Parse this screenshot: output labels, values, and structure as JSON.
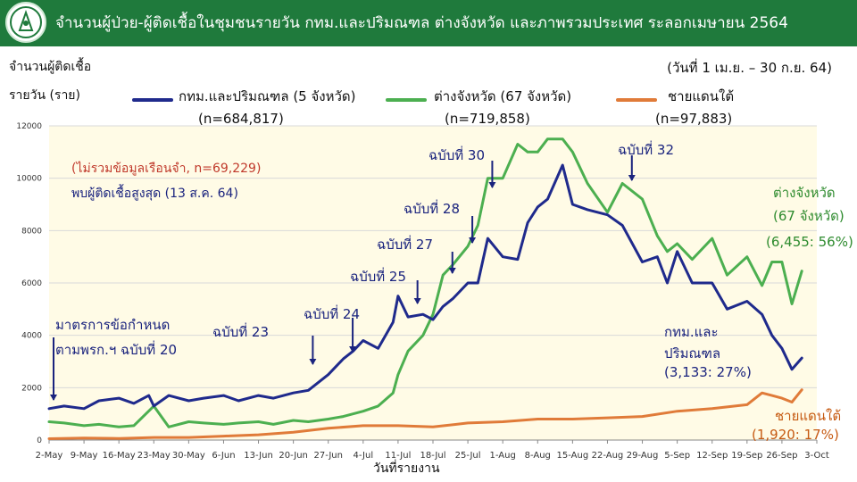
{
  "header": {
    "title": "จำนวนผู้ป่วย-ผู้ติดเชื้อในชุมชนรายวัน กทม.และปริมณฑล ต่างจังหวัด และภาพรวมประเทศ ระลอกเมษายน 2564",
    "logo_icon": "ministry-logo-icon",
    "bg_color": "#1f7a3c"
  },
  "y_label_line1": "จำนวนผู้ติดเชื้อ",
  "y_label_line2": "รายวัน (ราย)",
  "date_range": "(วันที่ 1 เม.ย. – 30 ก.ย. 64)",
  "x_axis_title": "วันที่รายงาน",
  "legend": [
    {
      "label": "กทม.และปริมณฑล (5 จังหวัด)",
      "n": "(n=684,817)",
      "color": "#1f2a8c"
    },
    {
      "label": "ต่างจังหวัด (67 จังหวัด)",
      "n": "(n=719,858)",
      "color": "#4caf50"
    },
    {
      "label": "ชายแดนใต้",
      "n": "(n=97,883)",
      "color": "#e07b39"
    }
  ],
  "notes": {
    "excluded": "(ไม่รวมข้อมูลเรือนจำ, n=69,229)",
    "peak": "พบผู้ติดเชื้อสูงสุด (13 ส.ค. 64)"
  },
  "annotations": {
    "measure_line1": "มาตรการข้อกำหนด",
    "measure_line2": "ตามพรก.ฯ ฉบับที่ 20",
    "v23": "ฉบับที่ 23",
    "v24": "ฉบับที่ 24",
    "v25": "ฉบับที่ 25",
    "v27": "ฉบับที่ 27",
    "v28": "ฉบับที่ 28",
    "v30": "ฉบับที่ 30",
    "v32": "ฉบับที่ 32",
    "prov_line1": "ต่างจังหวัด",
    "prov_line2": "(67 จังหวัด)",
    "prov_value": "(6,455: 56%)",
    "bkk_line1": "กทม.และ",
    "bkk_line2": "ปริมณฑล",
    "bkk_value": "(3,133: 27%)",
    "south_line1": "ชายแดนใต้",
    "south_value": "(1,920: 17%)"
  },
  "chart_data": {
    "type": "line",
    "x_unit": "day",
    "x_start": "2021-05-02",
    "x_end": "2021-10-03",
    "x_tick_labels": [
      "2-May",
      "9-May",
      "16-May",
      "23-May",
      "30-May",
      "6-Jun",
      "13-Jun",
      "20-Jun",
      "27-Jun",
      "4-Jul",
      "11-Jul",
      "18-Jul",
      "25-Jul",
      "1-Aug",
      "8-Aug",
      "15-Aug",
      "22-Aug",
      "29-Aug",
      "5-Sep",
      "12-Sep",
      "19-Sep",
      "26-Sep",
      "3-Oct"
    ],
    "y_ticks": [
      0,
      2000,
      4000,
      6000,
      8000,
      10000,
      12000
    ],
    "ylim": [
      0,
      12000
    ],
    "grid": "horizontal",
    "series": [
      {
        "name": "กทม.และปริมณฑล (5 จังหวัด)",
        "color": "#1f2a8c",
        "x": [
          "2-May",
          "5-May",
          "9-May",
          "12-May",
          "16-May",
          "19-May",
          "22-May",
          "23-May",
          "26-May",
          "30-May",
          "2-Jun",
          "6-Jun",
          "9-Jun",
          "13-Jun",
          "16-Jun",
          "20-Jun",
          "23-Jun",
          "27-Jun",
          "30-Jun",
          "2-Jul",
          "4-Jul",
          "7-Jul",
          "10-Jul",
          "11-Jul",
          "13-Jul",
          "16-Jul",
          "18-Jul",
          "20-Jul",
          "22-Jul",
          "25-Jul",
          "27-Jul",
          "29-Jul",
          "1-Aug",
          "4-Aug",
          "6-Aug",
          "8-Aug",
          "10-Aug",
          "13-Aug",
          "15-Aug",
          "18-Aug",
          "22-Aug",
          "25-Aug",
          "29-Aug",
          "1-Sep",
          "3-Sep",
          "5-Sep",
          "8-Sep",
          "12-Sep",
          "15-Sep",
          "19-Sep",
          "22-Sep",
          "24-Sep",
          "26-Sep",
          "28-Sep",
          "30-Sep"
        ],
        "values": [
          1200,
          1300,
          1200,
          1500,
          1600,
          1400,
          1700,
          1300,
          1700,
          1500,
          1600,
          1700,
          1500,
          1700,
          1600,
          1800,
          1900,
          2500,
          3100,
          3400,
          3800,
          3500,
          4500,
          5500,
          4700,
          4800,
          4600,
          5100,
          5400,
          6000,
          6000,
          7700,
          7000,
          6900,
          8300,
          8900,
          9200,
          10500,
          9000,
          8800,
          8600,
          8200,
          6800,
          7000,
          6000,
          7200,
          6000,
          6000,
          5000,
          5300,
          4800,
          4000,
          3500,
          2700,
          3133
        ]
      },
      {
        "name": "ต่างจังหวัด (67 จังหวัด)",
        "color": "#4caf50",
        "x": [
          "2-May",
          "5-May",
          "9-May",
          "12-May",
          "16-May",
          "19-May",
          "23-May",
          "26-May",
          "30-May",
          "2-Jun",
          "6-Jun",
          "9-Jun",
          "13-Jun",
          "16-Jun",
          "20-Jun",
          "23-Jun",
          "27-Jun",
          "30-Jun",
          "4-Jul",
          "7-Jul",
          "10-Jul",
          "11-Jul",
          "13-Jul",
          "16-Jul",
          "18-Jul",
          "20-Jul",
          "22-Jul",
          "25-Jul",
          "27-Jul",
          "29-Jul",
          "1-Aug",
          "4-Aug",
          "6-Aug",
          "8-Aug",
          "10-Aug",
          "13-Aug",
          "15-Aug",
          "18-Aug",
          "22-Aug",
          "25-Aug",
          "29-Aug",
          "1-Sep",
          "3-Sep",
          "5-Sep",
          "8-Sep",
          "12-Sep",
          "15-Sep",
          "19-Sep",
          "22-Sep",
          "24-Sep",
          "26-Sep",
          "28-Sep",
          "30-Sep"
        ],
        "values": [
          700,
          650,
          550,
          600,
          500,
          550,
          1300,
          500,
          700,
          650,
          600,
          650,
          700,
          600,
          750,
          700,
          800,
          900,
          1100,
          1300,
          1800,
          2500,
          3400,
          4000,
          4800,
          6300,
          6700,
          7400,
          8200,
          10000,
          10000,
          11300,
          11000,
          11000,
          11500,
          11500,
          11000,
          9800,
          8700,
          9800,
          9200,
          7800,
          7200,
          7500,
          6900,
          7700,
          6300,
          7000,
          5900,
          6800,
          6800,
          5200,
          6455
        ]
      },
      {
        "name": "ชายแดนใต้",
        "color": "#e07b39",
        "x": [
          "2-May",
          "9-May",
          "16-May",
          "23-May",
          "30-May",
          "6-Jun",
          "13-Jun",
          "20-Jun",
          "27-Jun",
          "4-Jul",
          "11-Jul",
          "18-Jul",
          "25-Jul",
          "1-Aug",
          "8-Aug",
          "15-Aug",
          "22-Aug",
          "29-Aug",
          "5-Sep",
          "12-Sep",
          "19-Sep",
          "22-Sep",
          "24-Sep",
          "26-Sep",
          "28-Sep",
          "30-Sep"
        ],
        "values": [
          50,
          80,
          60,
          100,
          100,
          150,
          200,
          300,
          450,
          550,
          550,
          500,
          650,
          700,
          800,
          800,
          850,
          900,
          1100,
          1200,
          1350,
          1800,
          1700,
          1600,
          1450,
          1920
        ]
      }
    ]
  }
}
